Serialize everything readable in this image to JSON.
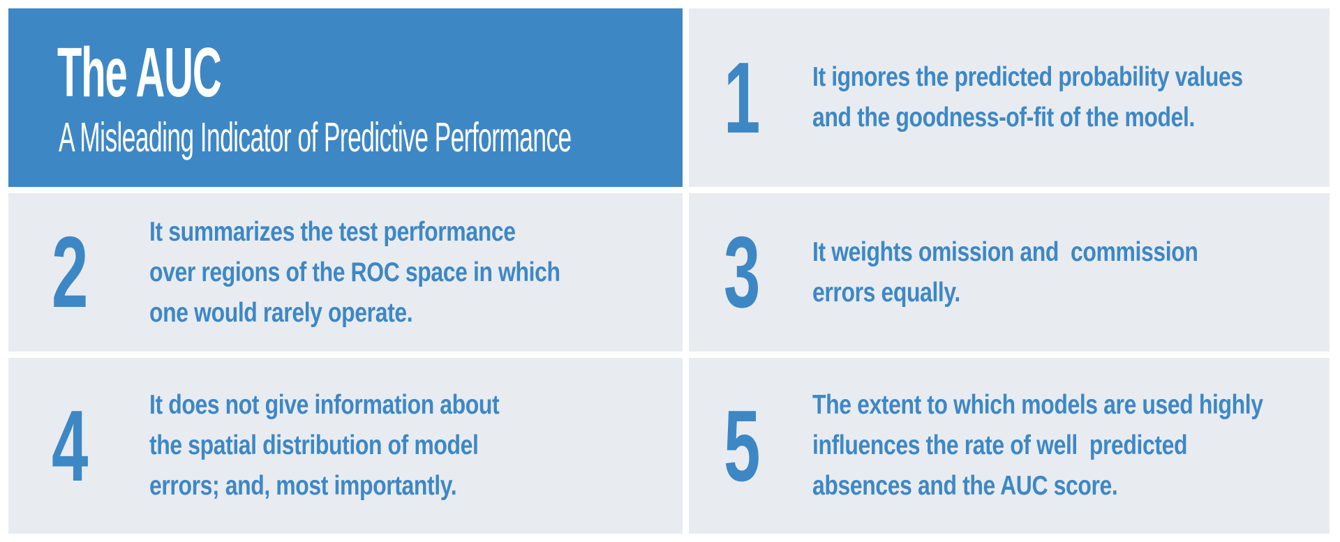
{
  "colors": {
    "accent": "#3e87c5",
    "card_bg": "#e8ecf0",
    "page_bg": "#ffffff",
    "header_text": "#ffffff"
  },
  "header": {
    "title": "The AUC",
    "subtitle": "A Misleading Indicator of Predictive Performance"
  },
  "points": [
    {
      "number": "1",
      "lines": [
        "It ignores the predicted probability values",
        "and the goodness-of-fit of the model."
      ]
    },
    {
      "number": "2",
      "lines": [
        "It summarizes the test performance",
        "over regions of the ROC space in which",
        "one would rarely operate."
      ]
    },
    {
      "number": "3",
      "lines": [
        "It weights omission and  commission",
        "errors equally."
      ]
    },
    {
      "number": "4",
      "lines": [
        "It does not give information about",
        "the spatial distribution of model",
        "errors; and, most importantly."
      ]
    },
    {
      "number": "5",
      "lines": [
        "The extent to which models are used highly",
        "influences the rate of well  predicted",
        "absences and the AUC score."
      ]
    }
  ]
}
